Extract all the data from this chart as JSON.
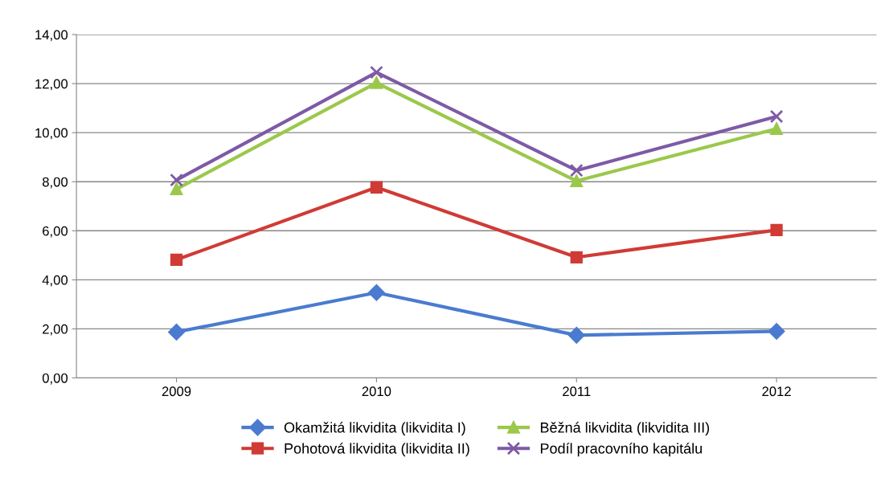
{
  "chart_data": {
    "type": "line",
    "categories": [
      "2009",
      "2010",
      "2011",
      "2012"
    ],
    "series": [
      {
        "name": "Okamžitá likvidita (likvidita I)",
        "color": "#4a7bd0",
        "marker": "diamond",
        "values": [
          1.87,
          3.48,
          1.74,
          1.9
        ]
      },
      {
        "name": "Pohotová likvidita (likvidita II)",
        "color": "#d03b35",
        "marker": "square",
        "values": [
          4.82,
          7.77,
          4.92,
          6.03
        ]
      },
      {
        "name": "Běžná likvidita (likvidita III)",
        "color": "#9bc84a",
        "marker": "triangle",
        "values": [
          7.7,
          12.03,
          8.03,
          10.16
        ]
      },
      {
        "name": "Podíl pracovního kapitálu",
        "color": "#7e5aa6",
        "marker": "cross",
        "values": [
          8.07,
          12.46,
          8.46,
          10.66
        ]
      }
    ],
    "ylim": [
      0,
      14
    ],
    "yticks": [
      {
        "value": 0,
        "label": "0,00"
      },
      {
        "value": 2,
        "label": "2,00"
      },
      {
        "value": 4,
        "label": "4,00"
      },
      {
        "value": 6,
        "label": "6,00"
      },
      {
        "value": 8,
        "label": "8,00"
      },
      {
        "value": 10,
        "label": "10,00"
      },
      {
        "value": 12,
        "label": "12,00"
      },
      {
        "value": 14,
        "label": "14,00"
      }
    ],
    "grid": "y",
    "legend": "bottom",
    "line_style": "solid"
  }
}
